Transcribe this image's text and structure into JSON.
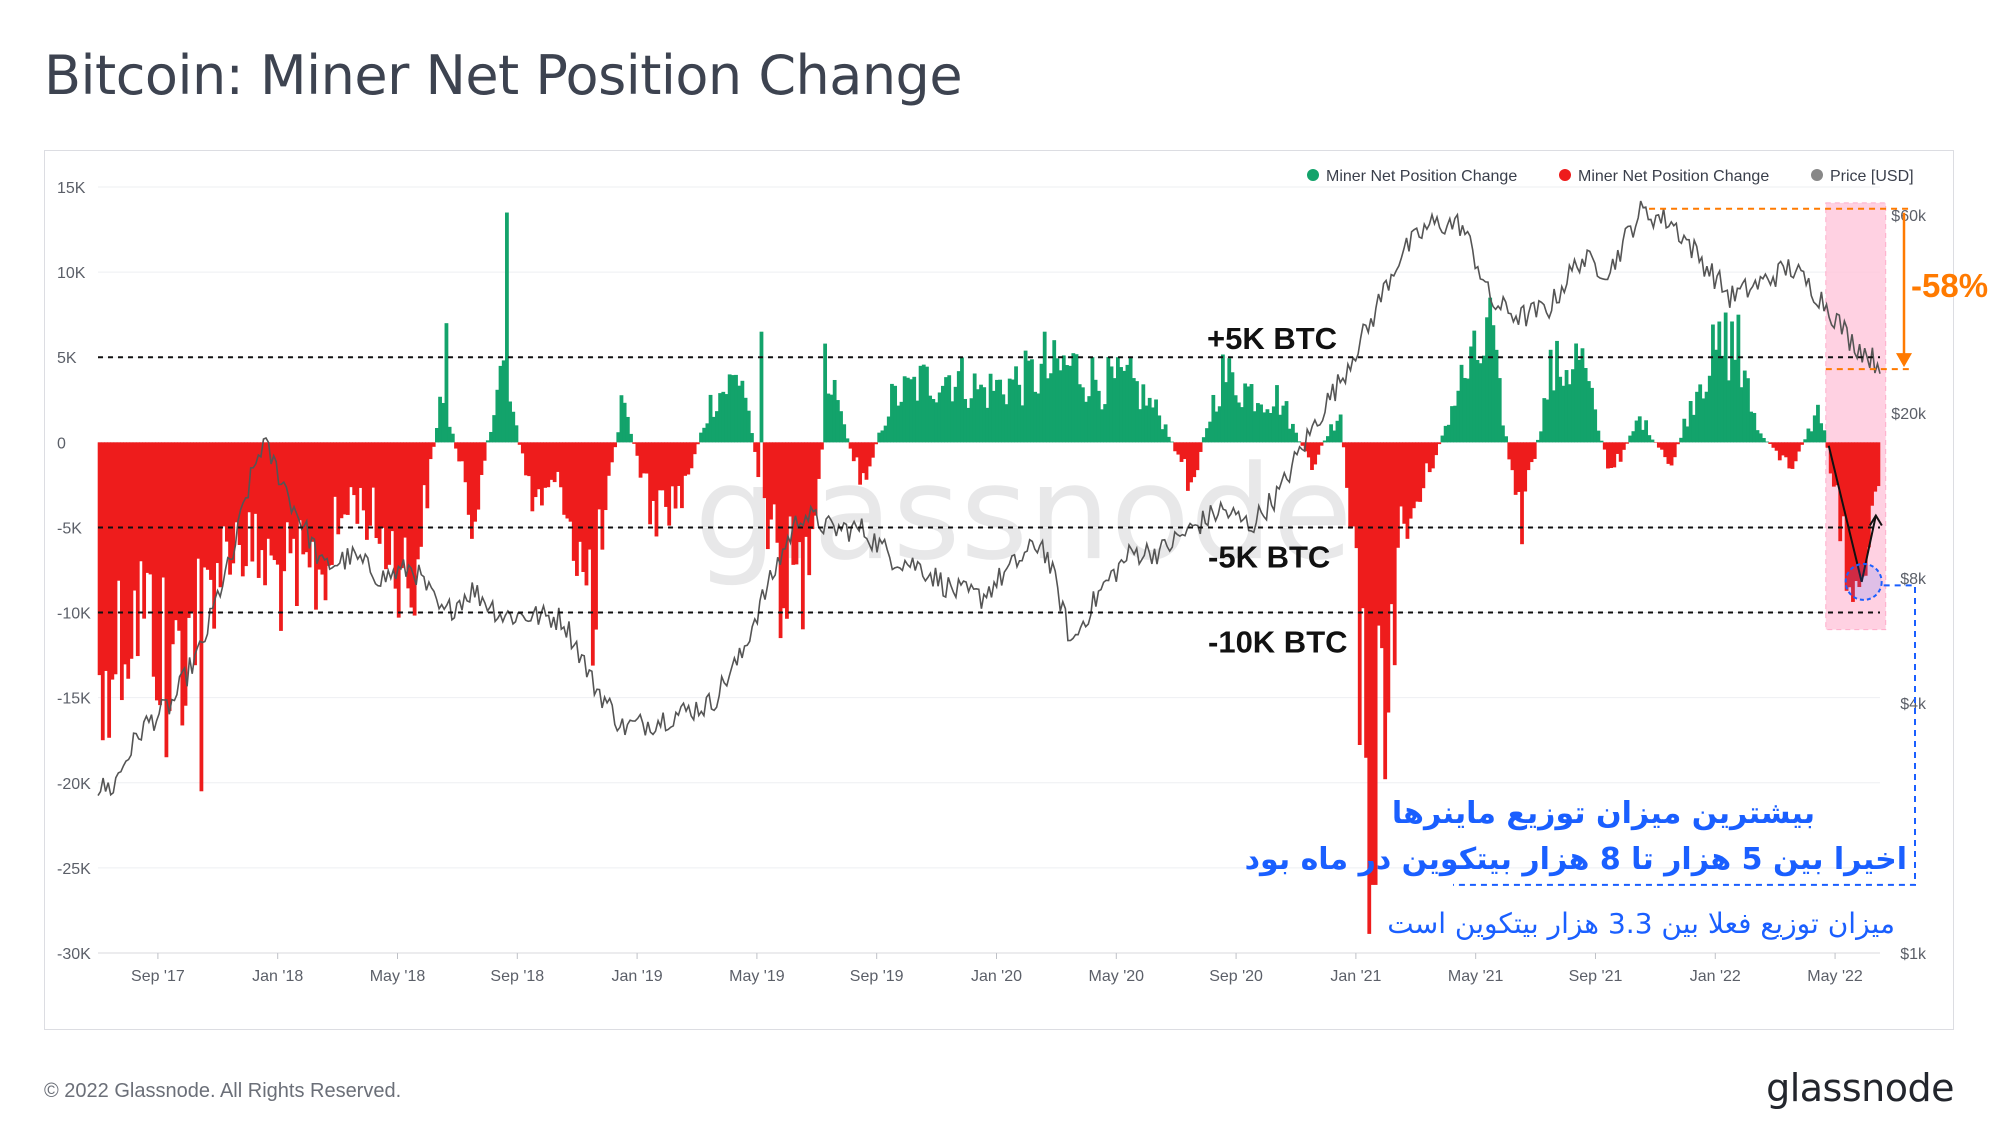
{
  "title": "Bitcoin: Miner Net Position Change",
  "footer": {
    "copyright": "© 2022 Glassnode. All Rights Reserved.",
    "logo": "glassnode"
  },
  "watermark": "glassnode",
  "colors": {
    "positive": "#13a36b",
    "negative": "#ee1c1c",
    "price": "#555555",
    "highlight_fill": "#ffc9dd",
    "orange": "#ff7a00",
    "blue": "#1a5fff"
  },
  "chart_data": {
    "type": "bar",
    "legend": {
      "placement": "top-right",
      "items": [
        {
          "label": "Miner Net Position Change",
          "color": "#13a36b"
        },
        {
          "label": "Miner Net Position Change",
          "color": "#ee1c1c"
        },
        {
          "label": "Price [USD]",
          "color": "#888888"
        }
      ]
    },
    "x_axis": {
      "ticks": [
        "Sep '17",
        "Jan '18",
        "May '18",
        "Sep '18",
        "Jan '19",
        "May '19",
        "Sep '19",
        "Jan '20",
        "May '20",
        "Sep '20",
        "Jan '21",
        "May '21",
        "Sep '21",
        "Jan '22",
        "May '22"
      ],
      "range": [
        "2017-07",
        "2022-06"
      ]
    },
    "y_left": {
      "ticks": [
        "15K",
        "10K",
        "5K",
        "0",
        "-5K",
        "-10K",
        "-15K",
        "-20K",
        "-25K",
        "-30K"
      ],
      "range": [
        -30000,
        15000
      ]
    },
    "y_right": {
      "scale": "log",
      "ticks": [
        "$60k",
        "$20k",
        "$8k",
        "$4k",
        "$1k"
      ],
      "range": [
        1000,
        70000
      ]
    },
    "reference_lines": [
      {
        "value": 5000,
        "label": "+5K BTC"
      },
      {
        "value": -5000,
        "label": "-5K BTC"
      },
      {
        "value": -10000,
        "label": "-10K BTC"
      }
    ],
    "series": [
      {
        "name": "Miner Net Position Change",
        "monthly_anchors": [
          {
            "date": "2017-07",
            "value": -12000
          },
          {
            "date": "2017-08",
            "value": -9500
          },
          {
            "date": "2017-09",
            "value": -13500
          },
          {
            "date": "2017-10",
            "value": -9000
          },
          {
            "date": "2017-11",
            "value": -5500
          },
          {
            "date": "2017-12",
            "value": -7000
          },
          {
            "date": "2018-01",
            "value": -8500
          },
          {
            "date": "2018-02",
            "value": -7500
          },
          {
            "date": "2018-03",
            "value": -3000
          },
          {
            "date": "2018-04",
            "value": -5500
          },
          {
            "date": "2018-05",
            "value": -8500
          },
          {
            "date": "2018-06",
            "value": 3000
          },
          {
            "date": "2018-07",
            "value": -4500
          },
          {
            "date": "2018-08",
            "value": 4500
          },
          {
            "date": "2018-09",
            "value": -3500
          },
          {
            "date": "2018-10",
            "value": -2500
          },
          {
            "date": "2018-11",
            "value": -10000
          },
          {
            "date": "2018-12",
            "value": 2500
          },
          {
            "date": "2019-01",
            "value": -4000
          },
          {
            "date": "2019-02",
            "value": -3000
          },
          {
            "date": "2019-03",
            "value": 2500
          },
          {
            "date": "2019-04",
            "value": 4000
          },
          {
            "date": "2019-05",
            "value": -6000
          },
          {
            "date": "2019-06",
            "value": -8500
          },
          {
            "date": "2019-07",
            "value": 3500
          },
          {
            "date": "2019-08",
            "value": -2500
          },
          {
            "date": "2019-09",
            "value": 2500
          },
          {
            "date": "2019-10",
            "value": 3500
          },
          {
            "date": "2019-11",
            "value": 4000
          },
          {
            "date": "2019-12",
            "value": 3000
          },
          {
            "date": "2020-01",
            "value": 3500
          },
          {
            "date": "2020-02",
            "value": 4000
          },
          {
            "date": "2020-03",
            "value": 4500
          },
          {
            "date": "2020-04",
            "value": 3500
          },
          {
            "date": "2020-05",
            "value": 3500
          },
          {
            "date": "2020-06",
            "value": 1500
          },
          {
            "date": "2020-07",
            "value": -2500
          },
          {
            "date": "2020-08",
            "value": 4000
          },
          {
            "date": "2020-09",
            "value": 3000
          },
          {
            "date": "2020-10",
            "value": 2500
          },
          {
            "date": "2020-11",
            "value": -1500
          },
          {
            "date": "2020-12",
            "value": 2000
          },
          {
            "date": "2021-01",
            "value": -22000
          },
          {
            "date": "2021-02",
            "value": -6000
          },
          {
            "date": "2021-03",
            "value": -1500
          },
          {
            "date": "2021-04",
            "value": 3500
          },
          {
            "date": "2021-05",
            "value": 6000
          },
          {
            "date": "2021-06",
            "value": -5000
          },
          {
            "date": "2021-07",
            "value": 4000
          },
          {
            "date": "2021-08",
            "value": 5000
          },
          {
            "date": "2021-09",
            "value": -2000
          },
          {
            "date": "2021-10",
            "value": 1500
          },
          {
            "date": "2021-11",
            "value": -1500
          },
          {
            "date": "2021-12",
            "value": 4000
          },
          {
            "date": "2022-01",
            "value": 6000
          },
          {
            "date": "2022-02",
            "value": 500
          },
          {
            "date": "2022-03",
            "value": -1500
          },
          {
            "date": "2022-04",
            "value": 2000
          },
          {
            "date": "2022-05",
            "value": -7500
          },
          {
            "date": "2022-06",
            "value": -3500
          }
        ]
      },
      {
        "name": "Price [USD]",
        "monthly_anchors": [
          {
            "date": "2017-07",
            "value": 2500
          },
          {
            "date": "2017-08",
            "value": 3500
          },
          {
            "date": "2017-09",
            "value": 4000
          },
          {
            "date": "2017-10",
            "value": 5500
          },
          {
            "date": "2017-11",
            "value": 9000
          },
          {
            "date": "2017-12",
            "value": 17000
          },
          {
            "date": "2018-01",
            "value": 12000
          },
          {
            "date": "2018-02",
            "value": 8500
          },
          {
            "date": "2018-03",
            "value": 9000
          },
          {
            "date": "2018-04",
            "value": 8000
          },
          {
            "date": "2018-05",
            "value": 8500
          },
          {
            "date": "2018-06",
            "value": 6500
          },
          {
            "date": "2018-07",
            "value": 7500
          },
          {
            "date": "2018-08",
            "value": 6500
          },
          {
            "date": "2018-09",
            "value": 6500
          },
          {
            "date": "2018-10",
            "value": 6400
          },
          {
            "date": "2018-11",
            "value": 4500
          },
          {
            "date": "2018-12",
            "value": 3500
          },
          {
            "date": "2019-01",
            "value": 3600
          },
          {
            "date": "2019-02",
            "value": 3800
          },
          {
            "date": "2019-03",
            "value": 4000
          },
          {
            "date": "2019-04",
            "value": 5200
          },
          {
            "date": "2019-05",
            "value": 8000
          },
          {
            "date": "2019-06",
            "value": 11500
          },
          {
            "date": "2019-07",
            "value": 10500
          },
          {
            "date": "2019-08",
            "value": 10500
          },
          {
            "date": "2019-09",
            "value": 9000
          },
          {
            "date": "2019-10",
            "value": 8500
          },
          {
            "date": "2019-11",
            "value": 7500
          },
          {
            "date": "2019-12",
            "value": 7200
          },
          {
            "date": "2020-01",
            "value": 8500
          },
          {
            "date": "2020-02",
            "value": 9800
          },
          {
            "date": "2020-03",
            "value": 5500
          },
          {
            "date": "2020-04",
            "value": 7500
          },
          {
            "date": "2020-05",
            "value": 9200
          },
          {
            "date": "2020-06",
            "value": 9300
          },
          {
            "date": "2020-07",
            "value": 10500
          },
          {
            "date": "2020-08",
            "value": 11700
          },
          {
            "date": "2020-09",
            "value": 10700
          },
          {
            "date": "2020-10",
            "value": 13000
          },
          {
            "date": "2020-11",
            "value": 18000
          },
          {
            "date": "2020-12",
            "value": 24000
          },
          {
            "date": "2021-01",
            "value": 33000
          },
          {
            "date": "2021-02",
            "value": 48000
          },
          {
            "date": "2021-03",
            "value": 57000
          },
          {
            "date": "2021-04",
            "value": 57000
          },
          {
            "date": "2021-05",
            "value": 37000
          },
          {
            "date": "2021-06",
            "value": 34000
          },
          {
            "date": "2021-07",
            "value": 36000
          },
          {
            "date": "2021-08",
            "value": 47000
          },
          {
            "date": "2021-09",
            "value": 44000
          },
          {
            "date": "2021-10",
            "value": 61000
          },
          {
            "date": "2021-11",
            "value": 58000
          },
          {
            "date": "2021-12",
            "value": 47000
          },
          {
            "date": "2022-01",
            "value": 38000
          },
          {
            "date": "2022-02",
            "value": 41000
          },
          {
            "date": "2022-03",
            "value": 45000
          },
          {
            "date": "2022-04",
            "value": 38000
          },
          {
            "date": "2022-05",
            "value": 30000
          },
          {
            "date": "2022-06",
            "value": 26000
          }
        ]
      }
    ],
    "annotations": {
      "drawdown_label": "-58%",
      "note_line1": "بیشترین میزان توزیع ماینرها",
      "note_line2": "اخیرا بین 5 هزار تا 8 هزار بیتکوین در ماه بود",
      "note_line3": "میزان توزیع فعلا بین 3.3 هزار بیتکوین است"
    }
  }
}
